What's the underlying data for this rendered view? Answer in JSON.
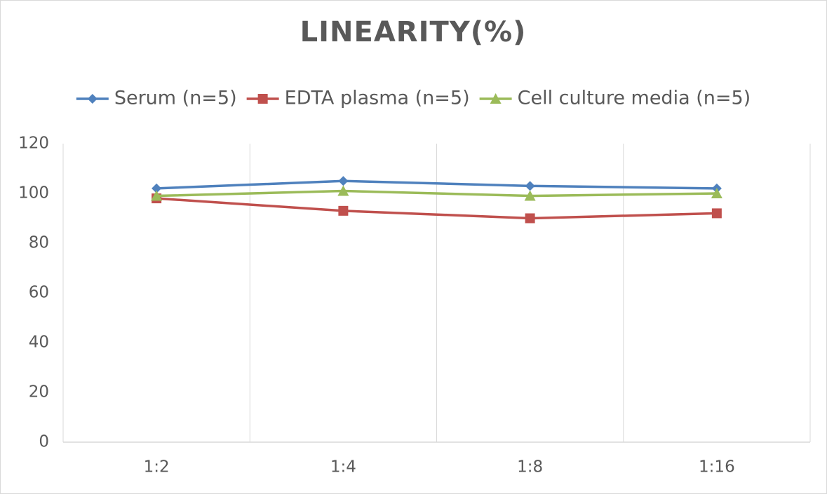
{
  "chart_data": {
    "type": "line",
    "title": "LINEARITY(%)",
    "categories": [
      "1:2",
      "1:4",
      "1:8",
      "1:16"
    ],
    "series": [
      {
        "name": "Serum (n=5)",
        "color": "#4f81bd",
        "marker": "diamond",
        "values": [
          102,
          105,
          103,
          102
        ]
      },
      {
        "name": "EDTA plasma (n=5)",
        "color": "#c0504d",
        "marker": "square",
        "values": [
          98,
          93,
          90,
          92
        ]
      },
      {
        "name": "Cell culture media (n=5)",
        "color": "#9bbb59",
        "marker": "triangle",
        "values": [
          99,
          101,
          99,
          100
        ]
      }
    ],
    "ylim": [
      0,
      120
    ],
    "yticks": [
      0,
      20,
      40,
      60,
      80,
      100,
      120
    ],
    "legend": "top"
  }
}
